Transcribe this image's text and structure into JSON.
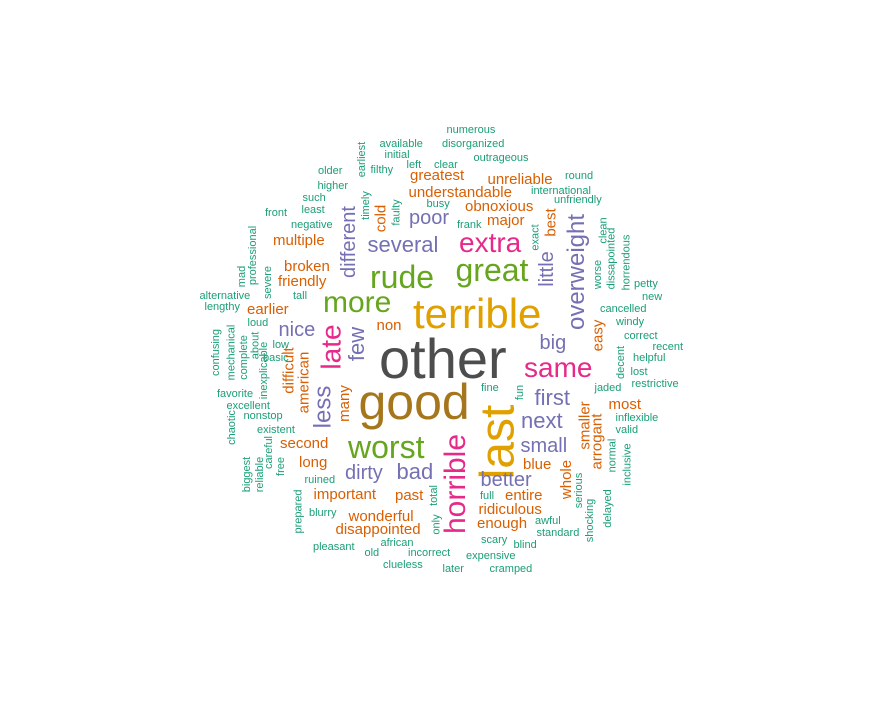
{
  "palette": {
    "gray": "#4d4d4d",
    "brown": "#a6761d",
    "orange": "#e0a100",
    "magenta": "#e7298a",
    "green": "#66a61e",
    "purple": "#7570b3",
    "rust": "#d95f02",
    "teal": "#1b9e77"
  },
  "words": [
    {
      "text": "other",
      "weight": 100,
      "color": "gray"
    },
    {
      "text": "good",
      "weight": 90,
      "color": "brown"
    },
    {
      "text": "terrible",
      "weight": 80,
      "color": "orange"
    },
    {
      "text": "last",
      "weight": 80,
      "color": "orange"
    },
    {
      "text": "great",
      "weight": 70,
      "color": "green"
    },
    {
      "text": "rude",
      "weight": 66,
      "color": "green"
    },
    {
      "text": "worst",
      "weight": 66,
      "color": "green"
    },
    {
      "text": "more",
      "weight": 62,
      "color": "green"
    },
    {
      "text": "horrible",
      "weight": 58,
      "color": "magenta"
    },
    {
      "text": "same",
      "weight": 52,
      "color": "magenta"
    },
    {
      "text": "extra",
      "weight": 52,
      "color": "magenta"
    },
    {
      "text": "late",
      "weight": 52,
      "color": "magenta"
    },
    {
      "text": "overweight",
      "weight": 48,
      "color": "purple"
    },
    {
      "text": "less",
      "weight": 44,
      "color": "purple"
    },
    {
      "text": "several",
      "weight": 40,
      "color": "purple"
    },
    {
      "text": "first",
      "weight": 40,
      "color": "purple"
    },
    {
      "text": "next",
      "weight": 40,
      "color": "purple"
    },
    {
      "text": "few",
      "weight": 40,
      "color": "purple"
    },
    {
      "text": "bad",
      "weight": 38,
      "color": "purple"
    },
    {
      "text": "big",
      "weight": 36,
      "color": "purple"
    },
    {
      "text": "poor",
      "weight": 36,
      "color": "purple"
    },
    {
      "text": "little",
      "weight": 34,
      "color": "purple"
    },
    {
      "text": "different",
      "weight": 34,
      "color": "purple"
    },
    {
      "text": "small",
      "weight": 34,
      "color": "purple"
    },
    {
      "text": "dirty",
      "weight": 34,
      "color": "purple"
    },
    {
      "text": "better",
      "weight": 34,
      "color": "purple"
    },
    {
      "text": "nice",
      "weight": 34,
      "color": "purple"
    },
    {
      "text": "unreliable",
      "weight": 28,
      "color": "rust"
    },
    {
      "text": "obnoxious",
      "weight": 28,
      "color": "rust"
    },
    {
      "text": "understandable",
      "weight": 28,
      "color": "rust"
    },
    {
      "text": "greatest",
      "weight": 28,
      "color": "rust"
    },
    {
      "text": "major",
      "weight": 28,
      "color": "rust"
    },
    {
      "text": "cold",
      "weight": 28,
      "color": "rust"
    },
    {
      "text": "best",
      "weight": 28,
      "color": "rust"
    },
    {
      "text": "multiple",
      "weight": 28,
      "color": "rust"
    },
    {
      "text": "broken",
      "weight": 28,
      "color": "rust"
    },
    {
      "text": "friendly",
      "weight": 28,
      "color": "rust"
    },
    {
      "text": "earlier",
      "weight": 28,
      "color": "rust"
    },
    {
      "text": "non",
      "weight": 28,
      "color": "rust"
    },
    {
      "text": "easy",
      "weight": 28,
      "color": "rust"
    },
    {
      "text": "difficult",
      "weight": 28,
      "color": "rust"
    },
    {
      "text": "american",
      "weight": 28,
      "color": "rust"
    },
    {
      "text": "many",
      "weight": 28,
      "color": "rust"
    },
    {
      "text": "most",
      "weight": 28,
      "color": "rust"
    },
    {
      "text": "smaller",
      "weight": 28,
      "color": "rust"
    },
    {
      "text": "arrogant",
      "weight": 28,
      "color": "rust"
    },
    {
      "text": "second",
      "weight": 28,
      "color": "rust"
    },
    {
      "text": "long",
      "weight": 28,
      "color": "rust"
    },
    {
      "text": "blue",
      "weight": 28,
      "color": "rust"
    },
    {
      "text": "whole",
      "weight": 28,
      "color": "rust"
    },
    {
      "text": "important",
      "weight": 28,
      "color": "rust"
    },
    {
      "text": "past",
      "weight": 28,
      "color": "rust"
    },
    {
      "text": "entire",
      "weight": 28,
      "color": "rust"
    },
    {
      "text": "ridiculous",
      "weight": 28,
      "color": "rust"
    },
    {
      "text": "wonderful",
      "weight": 28,
      "color": "rust"
    },
    {
      "text": "enough",
      "weight": 28,
      "color": "rust"
    },
    {
      "text": "disappointed",
      "weight": 28,
      "color": "rust"
    },
    {
      "text": "numerous",
      "weight": 16,
      "color": "teal"
    },
    {
      "text": "available",
      "weight": 16,
      "color": "teal"
    },
    {
      "text": "disorganized",
      "weight": 16,
      "color": "teal"
    },
    {
      "text": "initial",
      "weight": 16,
      "color": "teal"
    },
    {
      "text": "earliest",
      "weight": 16,
      "color": "teal"
    },
    {
      "text": "outrageous",
      "weight": 16,
      "color": "teal"
    },
    {
      "text": "left",
      "weight": 16,
      "color": "teal"
    },
    {
      "text": "clear",
      "weight": 16,
      "color": "teal"
    },
    {
      "text": "older",
      "weight": 16,
      "color": "teal"
    },
    {
      "text": "filthy",
      "weight": 16,
      "color": "teal"
    },
    {
      "text": "round",
      "weight": 16,
      "color": "teal"
    },
    {
      "text": "higher",
      "weight": 16,
      "color": "teal"
    },
    {
      "text": "international",
      "weight": 16,
      "color": "teal"
    },
    {
      "text": "such",
      "weight": 16,
      "color": "teal"
    },
    {
      "text": "timely",
      "weight": 16,
      "color": "teal"
    },
    {
      "text": "busy",
      "weight": 16,
      "color": "teal"
    },
    {
      "text": "unfriendly",
      "weight": 16,
      "color": "teal"
    },
    {
      "text": "least",
      "weight": 16,
      "color": "teal"
    },
    {
      "text": "faulty",
      "weight": 16,
      "color": "teal"
    },
    {
      "text": "front",
      "weight": 16,
      "color": "teal"
    },
    {
      "text": "frank",
      "weight": 16,
      "color": "teal"
    },
    {
      "text": "clean",
      "weight": 16,
      "color": "teal"
    },
    {
      "text": "negative",
      "weight": 16,
      "color": "teal"
    },
    {
      "text": "exact",
      "weight": 16,
      "color": "teal"
    },
    {
      "text": "dissapointed",
      "weight": 16,
      "color": "teal"
    },
    {
      "text": "professional",
      "weight": 16,
      "color": "teal"
    },
    {
      "text": "horrendous",
      "weight": 16,
      "color": "teal"
    },
    {
      "text": "mad",
      "weight": 16,
      "color": "teal"
    },
    {
      "text": "worse",
      "weight": 16,
      "color": "teal"
    },
    {
      "text": "severe",
      "weight": 16,
      "color": "teal"
    },
    {
      "text": "petty",
      "weight": 16,
      "color": "teal"
    },
    {
      "text": "alternative",
      "weight": 16,
      "color": "teal"
    },
    {
      "text": "tall",
      "weight": 16,
      "color": "teal"
    },
    {
      "text": "new",
      "weight": 16,
      "color": "teal"
    },
    {
      "text": "lengthy",
      "weight": 16,
      "color": "teal"
    },
    {
      "text": "cancelled",
      "weight": 16,
      "color": "teal"
    },
    {
      "text": "loud",
      "weight": 16,
      "color": "teal"
    },
    {
      "text": "windy",
      "weight": 16,
      "color": "teal"
    },
    {
      "text": "about",
      "weight": 16,
      "color": "teal"
    },
    {
      "text": "correct",
      "weight": 16,
      "color": "teal"
    },
    {
      "text": "confusing",
      "weight": 16,
      "color": "teal"
    },
    {
      "text": "low",
      "weight": 16,
      "color": "teal"
    },
    {
      "text": "recent",
      "weight": 16,
      "color": "teal"
    },
    {
      "text": "mechanical",
      "weight": 16,
      "color": "teal"
    },
    {
      "text": "complete",
      "weight": 16,
      "color": "teal"
    },
    {
      "text": "basic",
      "weight": 16,
      "color": "teal"
    },
    {
      "text": "decent",
      "weight": 16,
      "color": "teal"
    },
    {
      "text": "helpful",
      "weight": 16,
      "color": "teal"
    },
    {
      "text": "inexplicable",
      "weight": 16,
      "color": "teal"
    },
    {
      "text": "lost",
      "weight": 16,
      "color": "teal"
    },
    {
      "text": "restrictive",
      "weight": 16,
      "color": "teal"
    },
    {
      "text": "favorite",
      "weight": 16,
      "color": "teal"
    },
    {
      "text": "fine",
      "weight": 16,
      "color": "teal"
    },
    {
      "text": "jaded",
      "weight": 16,
      "color": "teal"
    },
    {
      "text": "excellent",
      "weight": 16,
      "color": "teal"
    },
    {
      "text": "fun",
      "weight": 16,
      "color": "teal"
    },
    {
      "text": "nonstop",
      "weight": 16,
      "color": "teal"
    },
    {
      "text": "inflexible",
      "weight": 16,
      "color": "teal"
    },
    {
      "text": "chaotic",
      "weight": 16,
      "color": "teal"
    },
    {
      "text": "existent",
      "weight": 16,
      "color": "teal"
    },
    {
      "text": "valid",
      "weight": 16,
      "color": "teal"
    },
    {
      "text": "careful",
      "weight": 16,
      "color": "teal"
    },
    {
      "text": "normal",
      "weight": 16,
      "color": "teal"
    },
    {
      "text": "biggest",
      "weight": 16,
      "color": "teal"
    },
    {
      "text": "reliable",
      "weight": 16,
      "color": "teal"
    },
    {
      "text": "free",
      "weight": 16,
      "color": "teal"
    },
    {
      "text": "inclusive",
      "weight": 16,
      "color": "teal"
    },
    {
      "text": "ruined",
      "weight": 16,
      "color": "teal"
    },
    {
      "text": "serious",
      "weight": 16,
      "color": "teal"
    },
    {
      "text": "total",
      "weight": 16,
      "color": "teal"
    },
    {
      "text": "full",
      "weight": 16,
      "color": "teal"
    },
    {
      "text": "delayed",
      "weight": 16,
      "color": "teal"
    },
    {
      "text": "prepared",
      "weight": 16,
      "color": "teal"
    },
    {
      "text": "blurry",
      "weight": 16,
      "color": "teal"
    },
    {
      "text": "shocking",
      "weight": 16,
      "color": "teal"
    },
    {
      "text": "awful",
      "weight": 16,
      "color": "teal"
    },
    {
      "text": "only",
      "weight": 16,
      "color": "teal"
    },
    {
      "text": "standard",
      "weight": 16,
      "color": "teal"
    },
    {
      "text": "scary",
      "weight": 16,
      "color": "teal"
    },
    {
      "text": "african",
      "weight": 16,
      "color": "teal"
    },
    {
      "text": "pleasant",
      "weight": 16,
      "color": "teal"
    },
    {
      "text": "blind",
      "weight": 16,
      "color": "teal"
    },
    {
      "text": "old",
      "weight": 16,
      "color": "teal"
    },
    {
      "text": "incorrect",
      "weight": 16,
      "color": "teal"
    },
    {
      "text": "expensive",
      "weight": 16,
      "color": "teal"
    },
    {
      "text": "clueless",
      "weight": 16,
      "color": "teal"
    },
    {
      "text": "later",
      "weight": 16,
      "color": "teal"
    },
    {
      "text": "cramped",
      "weight": 16,
      "color": "teal"
    }
  ]
}
